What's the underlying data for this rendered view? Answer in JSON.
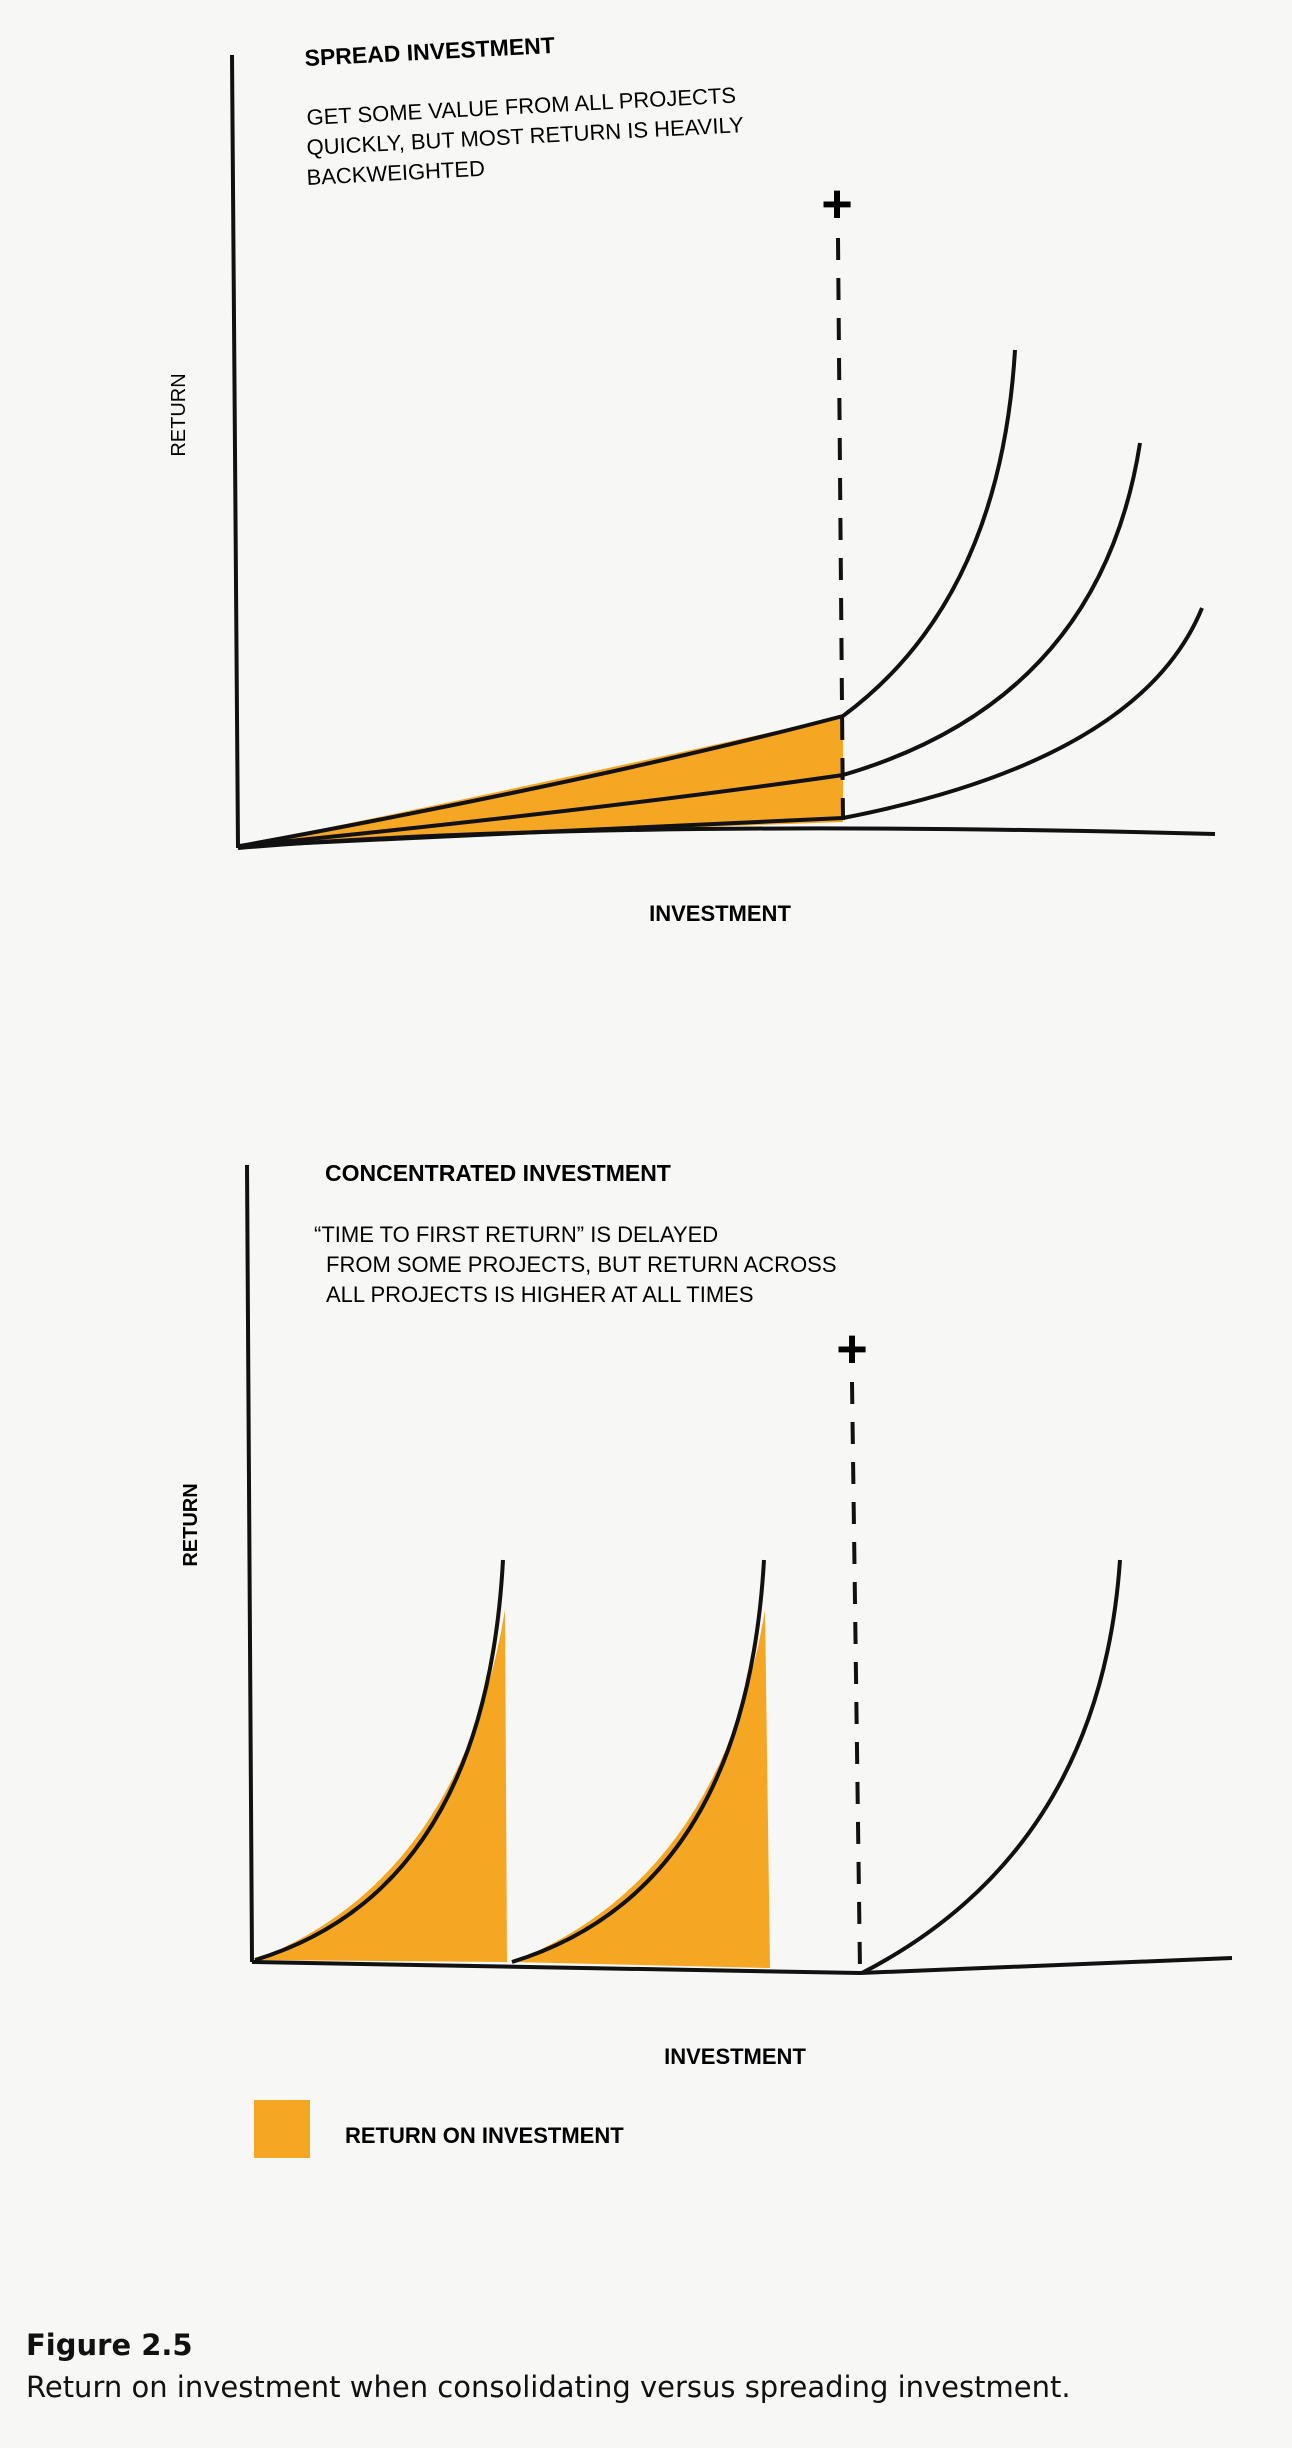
{
  "top_panel": {
    "title": "SPREAD INVESTMENT",
    "description_lines": [
      "GET SOME VALUE FROM ALL PROJECTS",
      "QUICKLY, BUT MOST RETURN IS HEAVILY",
      "BACKWEIGHTED"
    ],
    "y_axis_label": "RETURN",
    "x_axis_label": "INVESTMENT",
    "marker_symbol": "+"
  },
  "bottom_panel": {
    "title": "CONCENTRATED INVESTMENT",
    "description_lines": [
      "“TIME TO FIRST RETURN” IS DELAYED",
      "FROM SOME PROJECTS, BUT RETURN ACROSS",
      "ALL PROJECTS IS HIGHER AT ALL TIMES"
    ],
    "y_axis_label": "RETURN",
    "x_axis_label": "INVESTMENT",
    "marker_symbol": "+"
  },
  "legend": {
    "label": "RETURN ON INVESTMENT",
    "color": "#f5a623"
  },
  "colors": {
    "fill": "#f5a623",
    "line": "#111111",
    "background": "#f7f7f5"
  },
  "caption": {
    "title": "Figure 2.5",
    "text": "Return on investment when consolidating versus spreading investment."
  }
}
